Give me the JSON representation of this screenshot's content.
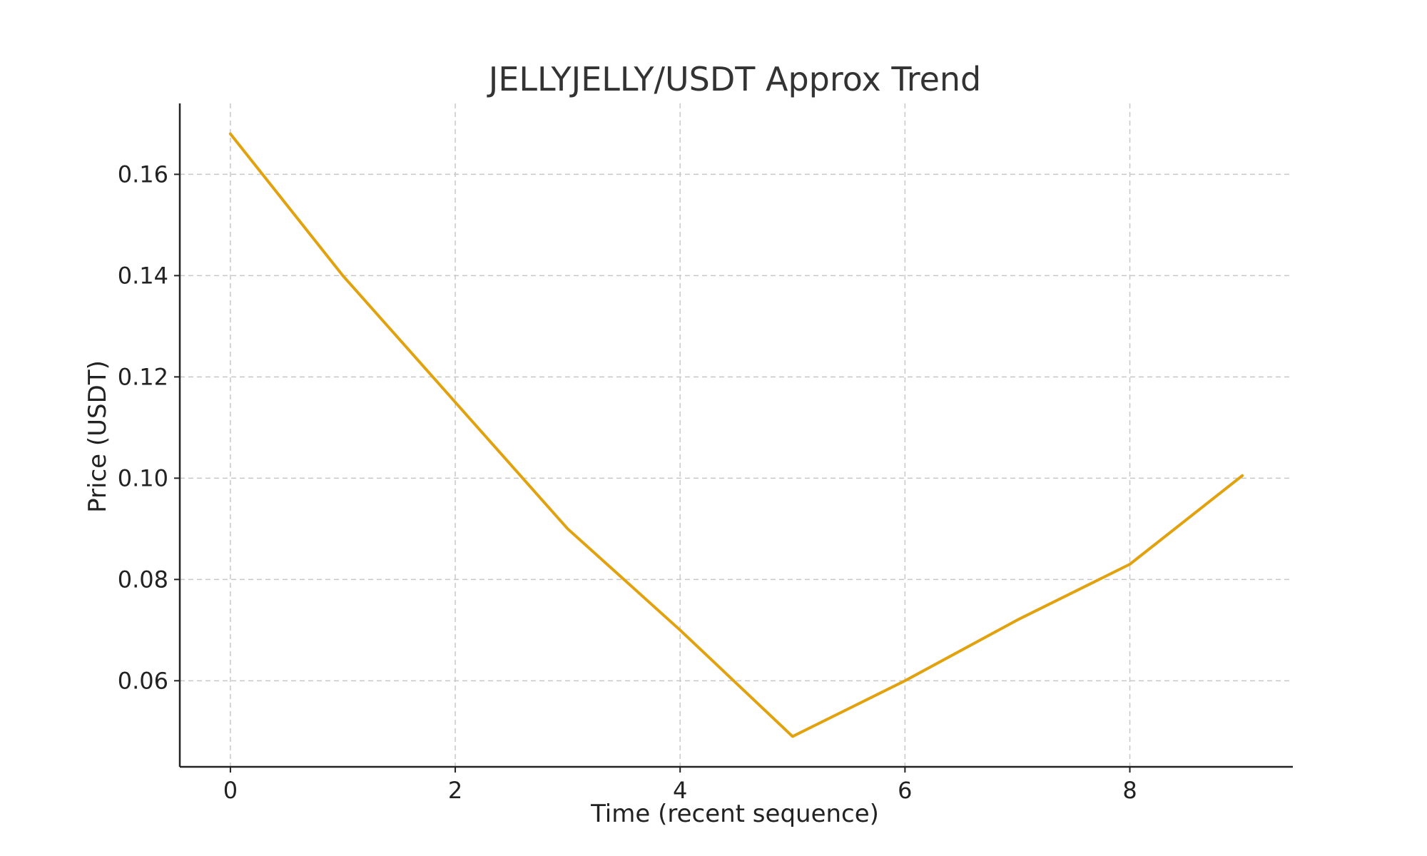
{
  "chart_data": {
    "type": "line",
    "title": "JELLYJELLY/USDT Approx Trend",
    "xlabel": "Time (recent sequence)",
    "ylabel": "Price (USDT)",
    "xlim": [
      -0.45,
      9.45
    ],
    "ylim": [
      0.043,
      0.174
    ],
    "x_ticks": [
      0,
      2,
      4,
      6,
      8
    ],
    "y_ticks": [
      0.06,
      0.08,
      0.1,
      0.12,
      0.14,
      0.16
    ],
    "x_tick_labels": [
      "0",
      "2",
      "4",
      "6",
      "8"
    ],
    "y_tick_labels": [
      "0.06",
      "0.08",
      "0.10",
      "0.12",
      "0.14",
      "0.16"
    ],
    "grid": true,
    "series": [
      {
        "name": "JELLYJELLY/USDT",
        "color": "#E1A20E",
        "x": [
          0,
          1,
          2,
          3,
          4,
          5,
          6,
          7,
          8,
          9
        ],
        "values": [
          0.168,
          0.14,
          0.115,
          0.09,
          0.07,
          0.049,
          0.06,
          0.072,
          0.083,
          0.1005
        ]
      }
    ]
  }
}
